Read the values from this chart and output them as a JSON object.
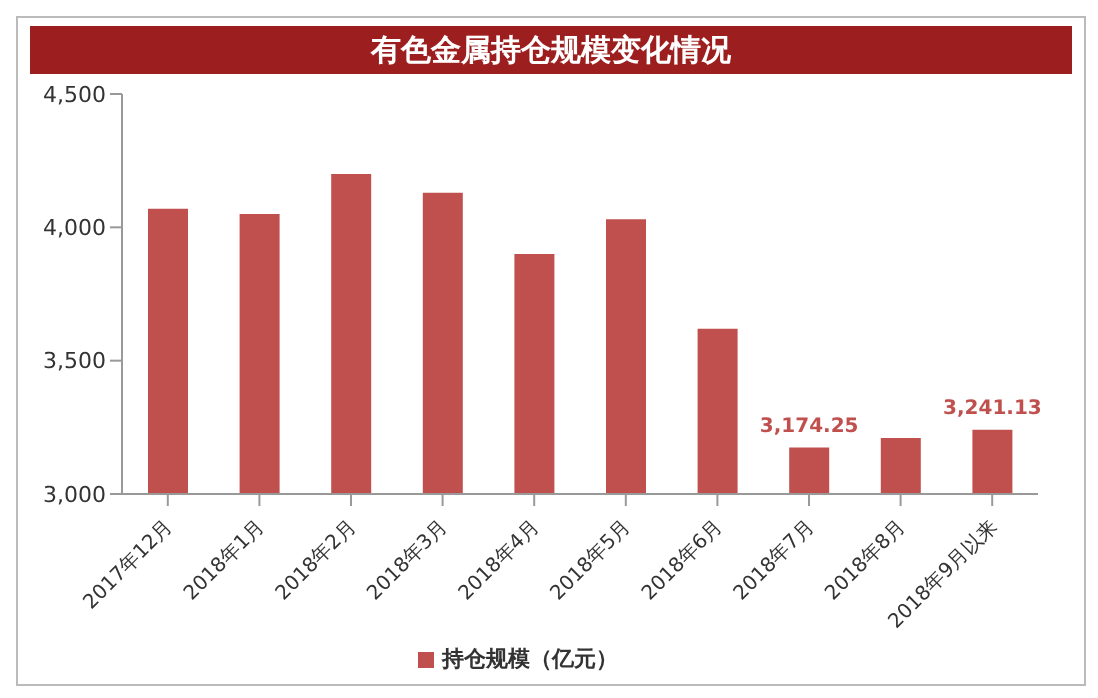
{
  "chart_data": {
    "type": "bar",
    "title": "有色金属持仓规模变化情况",
    "categories": [
      "2017年12月",
      "2018年1月",
      "2018年2月",
      "2018年3月",
      "2018年4月",
      "2018年5月",
      "2018年6月",
      "2018年7月",
      "2018年8月",
      "2018年9月以来"
    ],
    "series": [
      {
        "name": "持仓规模（亿元）",
        "color": "#c0504d",
        "values": [
          4070,
          4050,
          4200,
          4130,
          3900,
          4030,
          3620,
          3174.25,
          3210,
          3241.13
        ],
        "value_labels": [
          null,
          null,
          null,
          null,
          null,
          null,
          null,
          "3,174.25",
          null,
          "3,241.13"
        ]
      }
    ],
    "ylim": [
      3000,
      4500
    ],
    "yticks": [
      {
        "value": 3000,
        "label": "3,000"
      },
      {
        "value": 3500,
        "label": "3,500"
      },
      {
        "value": 4000,
        "label": "4,000"
      },
      {
        "value": 4500,
        "label": "4,500"
      }
    ],
    "grid": false,
    "legend": "bottom"
  }
}
